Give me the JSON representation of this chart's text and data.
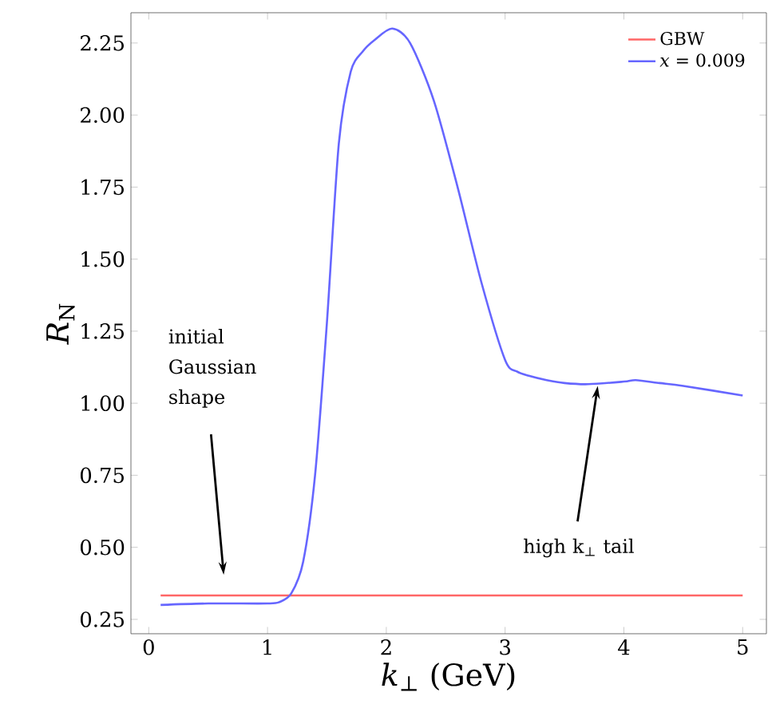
{
  "chart_data": {
    "type": "line",
    "xlabel": "*k*$_{⊥}$ (GeV)",
    "ylabel": "*R*$_{N}$",
    "xlim": [
      -0.15,
      5.2
    ],
    "ylim": [
      0.2,
      2.355
    ],
    "xticks": [
      0,
      1,
      2,
      3,
      4,
      5
    ],
    "yticks": [
      {
        "value": 0.25,
        "label": "0.25"
      },
      {
        "value": 0.5,
        "label": "0.50"
      },
      {
        "value": 0.75,
        "label": "0.75"
      },
      {
        "value": 1.0,
        "label": "1.00"
      },
      {
        "value": 1.25,
        "label": "1.25"
      },
      {
        "value": 1.5,
        "label": "1.50"
      },
      {
        "value": 1.75,
        "label": "1.75"
      },
      {
        "value": 2.0,
        "label": "2.00"
      },
      {
        "value": 2.25,
        "label": "2.25"
      }
    ],
    "series": [
      {
        "name": "GBW",
        "color": "#ff6666",
        "x": [
          0.1,
          5.0
        ],
        "values": [
          0.333,
          0.333
        ]
      },
      {
        "name": "*x* = 0.009",
        "color": "#6666ff",
        "x": [
          0.1,
          0.5,
          1.0,
          1.1,
          1.2,
          1.3,
          1.4,
          1.5,
          1.6,
          1.7,
          1.8,
          1.9,
          2.05,
          2.2,
          2.4,
          2.6,
          2.8,
          3.0,
          3.1,
          3.2,
          3.35,
          3.5,
          3.7,
          4.0,
          4.1,
          4.3,
          4.5,
          5.0
        ],
        "values": [
          0.3,
          0.305,
          0.305,
          0.31,
          0.34,
          0.45,
          0.75,
          1.28,
          1.9,
          2.15,
          2.22,
          2.26,
          2.3,
          2.25,
          2.05,
          1.75,
          1.42,
          1.15,
          1.11,
          1.095,
          1.08,
          1.07,
          1.066,
          1.075,
          1.08,
          1.07,
          1.06,
          1.027
        ]
      }
    ],
    "annotations": [
      "initial Gaussian shape",
      {
        "text": "high k$_{⊥}$ tail",
        "x": 3.78,
        "y": 1.06
      }
    ],
    "legend": "top right",
    "grid": false,
    "marker": "none",
    "line_style": "solid"
  }
}
